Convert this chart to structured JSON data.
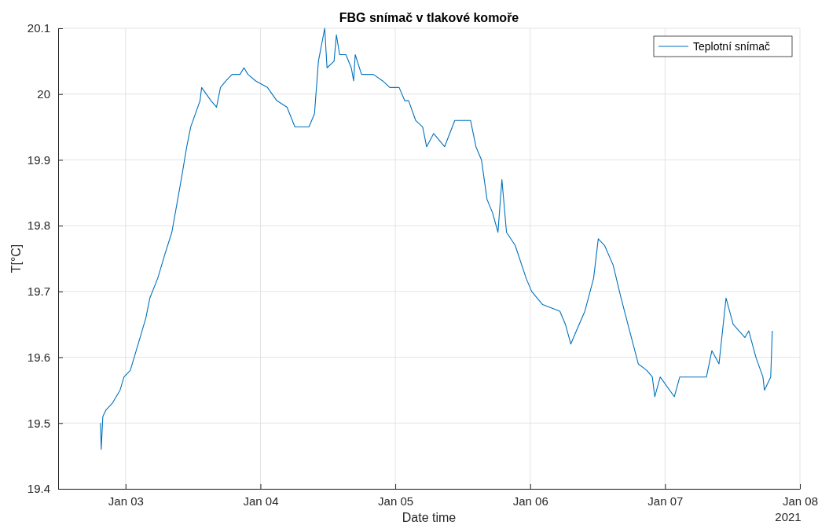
{
  "chart_data": {
    "type": "line",
    "title": "FBG snímač v tlakové komoře",
    "xlabel": "Date time",
    "ylabel": "T[°C]",
    "annotations": [
      "2021"
    ],
    "x": [
      "2021-01-02T19:32",
      "2021-01-02T19:40",
      "2021-01-02T19:57",
      "2021-01-02T20:31",
      "2021-01-02T21:38",
      "2021-01-02T23:01",
      "2021-01-02T23:43",
      "2021-01-03T00:50",
      "2021-01-03T02:14",
      "2021-01-03T03:37",
      "2021-01-03T04:19",
      "2021-01-03T05:43",
      "2021-01-03T07:07",
      "2021-01-03T08:14",
      "2021-01-03T09:04",
      "2021-01-03T09:54",
      "2021-01-03T10:53",
      "2021-01-03T11:35",
      "2021-01-03T13:15",
      "2021-01-03T13:32",
      "2021-01-03T15:12",
      "2021-01-03T16:11",
      "2021-01-03T16:53",
      "2021-01-03T17:51",
      "2021-01-03T18:58",
      "2021-01-03T20:22",
      "2021-01-03T21:04",
      "2021-01-03T21:46",
      "2021-01-03T23:09",
      "2021-01-04T01:15",
      "2021-01-04T02:55",
      "2021-01-04T04:44",
      "2021-01-04T06:08",
      "2021-01-04T08:38",
      "2021-01-04T09:37",
      "2021-01-04T10:19",
      "2021-01-04T11:26",
      "2021-01-04T11:51",
      "2021-01-04T13:06",
      "2021-01-04T13:31",
      "2021-01-04T14:05",
      "2021-01-04T15:12",
      "2021-01-04T16:10",
      "2021-01-04T16:35",
      "2021-01-04T16:52",
      "2021-01-04T17:59",
      "2021-01-04T20:05",
      "2021-01-04T21:45",
      "2021-01-04T23:01",
      "2021-01-05T00:41",
      "2021-01-05T01:40",
      "2021-01-05T02:22",
      "2021-01-05T03:37",
      "2021-01-05T04:52",
      "2021-01-05T05:34",
      "2021-01-05T06:49",
      "2021-01-05T08:46",
      "2021-01-05T10:35",
      "2021-01-05T13:23",
      "2021-01-05T14:21",
      "2021-01-05T15:20",
      "2021-01-05T16:19",
      "2021-01-05T17:17",
      "2021-01-05T18:16",
      "2021-01-05T18:58",
      "2021-01-05T19:47",
      "2021-01-05T21:20",
      "2021-01-05T23:17",
      "2021-01-06T00:16",
      "2021-01-06T02:13",
      "2021-01-06T05:17",
      "2021-01-06T06:16",
      "2021-01-06T07:14",
      "2021-01-06T08:13",
      "2021-01-06T09:44",
      "2021-01-06T11:17",
      "2021-01-06T12:07",
      "2021-01-06T13:14",
      "2021-01-06T14:46",
      "2021-01-06T16:10",
      "2021-01-06T17:42",
      "2021-01-06T19:14",
      "2021-01-06T20:46",
      "2021-01-06T21:44",
      "2021-01-06T22:10",
      "2021-01-06T23:08",
      "2021-01-07T01:39",
      "2021-01-07T02:37",
      "2021-01-07T07:22",
      "2021-01-07T08:20",
      "2021-01-07T09:36",
      "2021-01-07T10:51",
      "2021-01-07T12:07",
      "2021-01-07T14:12",
      "2021-01-07T14:54",
      "2021-01-07T16:10",
      "2021-01-07T17:25",
      "2021-01-07T17:41",
      "2021-01-07T18:48",
      "2021-01-07T19:05"
    ],
    "series": [
      {
        "name": "Teplotní snímač",
        "color": "#0072bd",
        "values": [
          19.5,
          19.46,
          19.51,
          19.52,
          19.53,
          19.55,
          19.57,
          19.58,
          19.62,
          19.66,
          19.69,
          19.72,
          19.76,
          19.79,
          19.83,
          19.87,
          19.92,
          19.95,
          19.99,
          20.01,
          19.99,
          19.98,
          20.01,
          20.02,
          20.03,
          20.03,
          20.04,
          20.03,
          20.02,
          20.01,
          19.99,
          19.98,
          19.95,
          19.95,
          19.97,
          20.05,
          20.1,
          20.04,
          20.05,
          20.09,
          20.06,
          20.06,
          20.04,
          20.02,
          20.06,
          20.03,
          20.03,
          20.02,
          20.01,
          20.01,
          19.99,
          19.99,
          19.96,
          19.95,
          19.92,
          19.94,
          19.92,
          19.96,
          19.96,
          19.92,
          19.9,
          19.84,
          19.82,
          19.79,
          19.87,
          19.79,
          19.77,
          19.72,
          19.7,
          19.68,
          19.67,
          19.65,
          19.62,
          19.64,
          19.67,
          19.72,
          19.78,
          19.77,
          19.74,
          19.69,
          19.64,
          19.59,
          19.58,
          19.57,
          19.54,
          19.57,
          19.54,
          19.57,
          19.57,
          19.61,
          19.59,
          19.69,
          19.65,
          19.63,
          19.64,
          19.6,
          19.57,
          19.55,
          19.57,
          19.64
        ]
      }
    ],
    "xlim": [
      "2021-01-02T12:00",
      "2021-01-08T00:00"
    ],
    "xticks": [
      {
        "value": "2021-01-03",
        "label": "Jan 03"
      },
      {
        "value": "2021-01-04",
        "label": "Jan 04"
      },
      {
        "value": "2021-01-05",
        "label": "Jan 05"
      },
      {
        "value": "2021-01-06",
        "label": "Jan 06"
      },
      {
        "value": "2021-01-07",
        "label": "Jan 07"
      },
      {
        "value": "2021-01-08",
        "label": "Jan 08"
      }
    ],
    "ylim": [
      19.4,
      20.1
    ],
    "yticks": [
      19.4,
      19.5,
      19.6,
      19.7,
      19.8,
      19.9,
      20,
      20.1
    ],
    "grid": true,
    "legend": "top right",
    "line_style": "solid",
    "marker": "none"
  }
}
